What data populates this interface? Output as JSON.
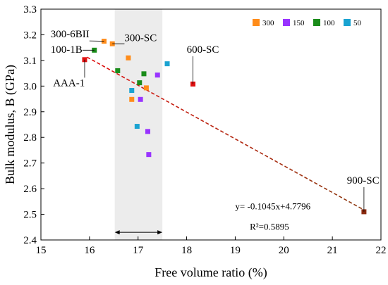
{
  "chart_data": {
    "type": "scatter",
    "xlabel": "Free volume ratio (%)",
    "ylabel": "Bulk modulus, B (GPa)",
    "xlim": [
      15,
      22
    ],
    "ylim": [
      2.4,
      3.3
    ],
    "xticks": [
      15,
      16,
      17,
      18,
      19,
      20,
      21,
      22
    ],
    "xtick_labels": [
      "15",
      "16",
      "17",
      "18",
      "19",
      "20",
      "21",
      "22"
    ],
    "yticks": [
      2.4,
      2.5,
      2.6,
      2.7,
      2.8,
      2.9,
      3.0,
      3.1,
      3.2,
      3.3
    ],
    "ytick_labels": [
      "2.4",
      "2.5",
      "2.6",
      "2.7",
      "2.8",
      "2.9",
      "3.0",
      "3.1",
      "3.2",
      "3.3"
    ],
    "grid": false,
    "legend_position": "top-right",
    "series": [
      {
        "name": "300",
        "color": "#ff8c1a",
        "points": [
          [
            16.3,
            3.175
          ],
          [
            16.47,
            3.165
          ],
          [
            16.8,
            3.11
          ],
          [
            16.87,
            2.948
          ],
          [
            17.17,
            2.993
          ]
        ]
      },
      {
        "name": "150",
        "color": "#9933ff",
        "points": [
          [
            17.05,
            2.948
          ],
          [
            17.4,
            3.043
          ],
          [
            17.2,
            2.823
          ],
          [
            17.22,
            2.733
          ]
        ]
      },
      {
        "name": "100",
        "color": "#1a8c1a",
        "points": [
          [
            16.1,
            3.14
          ],
          [
            16.58,
            3.06
          ],
          [
            17.03,
            3.013
          ],
          [
            17.12,
            3.048
          ]
        ]
      },
      {
        "name": "50",
        "color": "#1aa3d1",
        "points": [
          [
            16.87,
            2.983
          ],
          [
            17.6,
            3.087
          ],
          [
            16.98,
            2.843
          ]
        ]
      }
    ],
    "special_points": [
      {
        "label": "AAA-1",
        "color": "#e01010",
        "x": 15.9,
        "y": 3.103
      },
      {
        "label": "600-SC",
        "color": "#e01010",
        "x": 18.13,
        "y": 3.008
      },
      {
        "label": "900-SC",
        "color": "#8b2a10",
        "x": 21.65,
        "y": 2.51
      }
    ],
    "point_labels": [
      {
        "text": "300-6BII",
        "x": 15.2,
        "y": 3.19,
        "to_x": 16.3,
        "to_y": 3.175
      },
      {
        "text": "300-SC",
        "x": 16.72,
        "y": 3.175,
        "to_x": 16.47,
        "to_y": 3.165
      },
      {
        "text": "100-1B",
        "x": 15.2,
        "y": 3.13,
        "to_x": 16.1,
        "to_y": 3.14
      },
      {
        "text": "AAA-1",
        "x": 15.25,
        "y": 3.0,
        "to_x": 15.9,
        "to_y": 3.103
      },
      {
        "text": "600-SC",
        "x": 18.0,
        "y": 3.13,
        "to_x": 18.13,
        "to_y": 3.008
      },
      {
        "text": "900-SC",
        "x": 21.3,
        "y": 2.62,
        "to_x": 21.65,
        "to_y": 2.51
      }
    ],
    "shaded_band": {
      "x0": 16.52,
      "x1": 17.5,
      "color": "#ececec"
    },
    "band_arrow": {
      "x0": 16.52,
      "x1": 17.5,
      "y": 2.43
    },
    "fit_line": {
      "equation": "y= -0.1045x+4.7796",
      "r_squared": "R²=0.5895",
      "slope": -0.1045,
      "intercept": 4.7796,
      "x_start": 15.95,
      "x_end": 21.65,
      "color_start": "#e01010",
      "color_end": "#8b3a10"
    },
    "equation_position": {
      "x": 19.0,
      "y": 2.52
    },
    "r2_position": {
      "x": 19.3,
      "y": 2.44
    }
  }
}
